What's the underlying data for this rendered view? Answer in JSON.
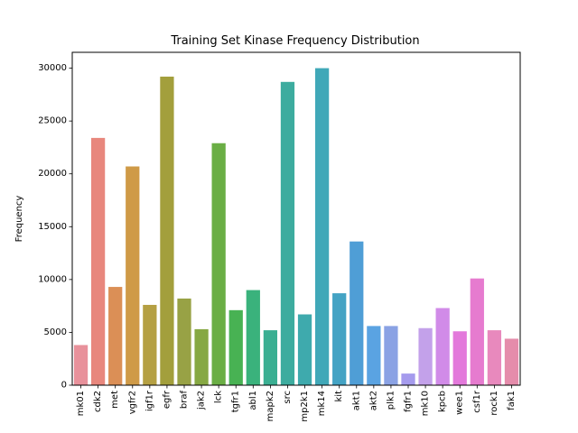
{
  "chart_data": {
    "type": "bar",
    "title": "Training Set Kinase Frequency Distribution",
    "xlabel": "",
    "ylabel": "Frequency",
    "ylim": [
      0,
      31500
    ],
    "yticks": [
      0,
      5000,
      10000,
      15000,
      20000,
      25000,
      30000
    ],
    "ytick_labels": [
      "0",
      "5000",
      "10000",
      "15000",
      "20000",
      "25000",
      "30000"
    ],
    "grid": false,
    "categories": [
      "mk01",
      "cdk2",
      "met",
      "vgfr2",
      "igf1r",
      "egfr",
      "braf",
      "jak2",
      "lck",
      "tgfr1",
      "abl1",
      "mapk2",
      "src",
      "mp2k1",
      "mk14",
      "kit",
      "akt1",
      "akt2",
      "plk1",
      "fgfr1",
      "mk10",
      "kpcb",
      "wee1",
      "csf1r",
      "rock1",
      "fak1"
    ],
    "values": [
      3800,
      23400,
      9300,
      20700,
      7600,
      29200,
      8200,
      5300,
      22900,
      7100,
      9000,
      5200,
      28700,
      6700,
      30000,
      8700,
      13600,
      5600,
      5600,
      1100,
      5400,
      7300,
      5100,
      10100,
      5200,
      4400
    ],
    "colors": [
      "#e8919b",
      "#e8877d",
      "#db8f56",
      "#cf9a47",
      "#b5a043",
      "#a39f3c",
      "#98a245",
      "#86a843",
      "#6aae44",
      "#48b253",
      "#3ab27c",
      "#3aaf92",
      "#3dac9f",
      "#3eaaad",
      "#40a8b8",
      "#44a3c4",
      "#4f9ed6",
      "#5aa3e2",
      "#8aa2e4",
      "#a59bed",
      "#c3a1ea",
      "#d18be8",
      "#e379db",
      "#e67bcf",
      "#e889bd",
      "#e58cab"
    ]
  }
}
